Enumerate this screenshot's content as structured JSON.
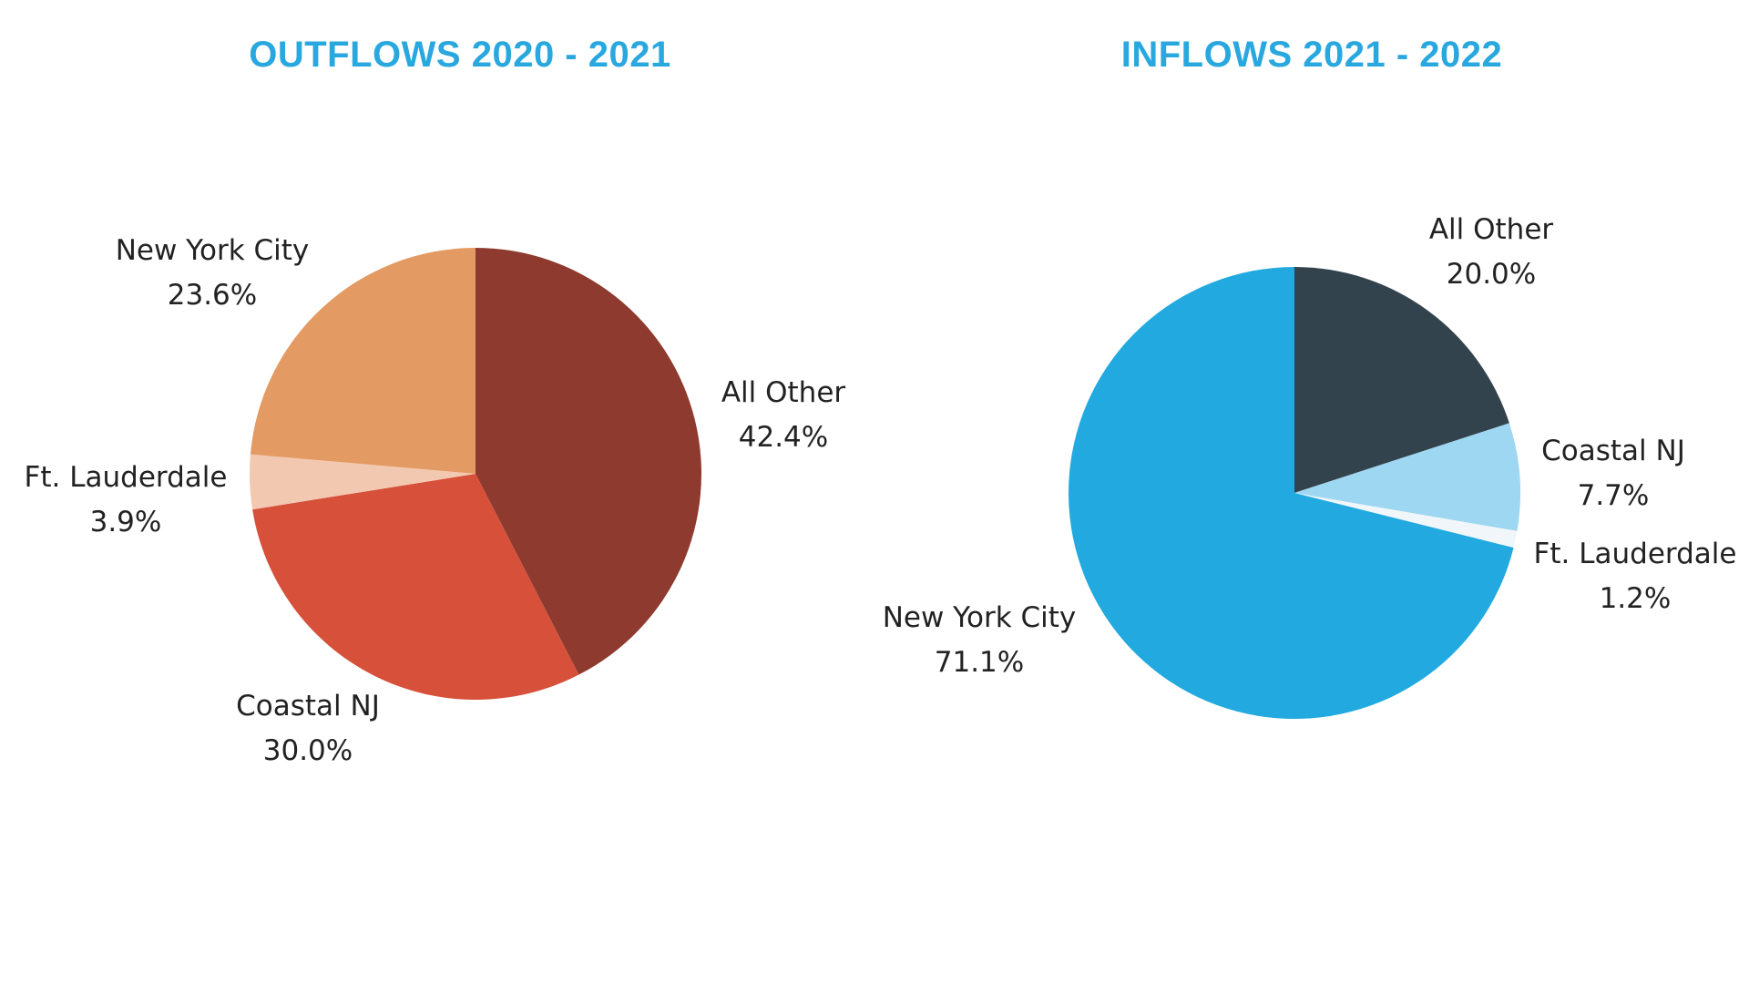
{
  "colors": {
    "title": "#29a8df"
  },
  "chart_data": [
    {
      "type": "pie",
      "title": "OUTFLOWS 2020 - 2021",
      "categories": [
        "All Other",
        "Coastal NJ",
        "Ft. Lauderdale",
        "New York City"
      ],
      "values": [
        42.4,
        30.0,
        3.9,
        23.6
      ],
      "value_labels": [
        "42.4%",
        "30.0%",
        "3.9%",
        "23.6%"
      ],
      "colors": [
        "#8e3a2e",
        "#d6503a",
        "#f3c8b0",
        "#e39a63"
      ],
      "start": "12 o'clock",
      "direction": "clockwise",
      "legend": "none"
    },
    {
      "type": "pie",
      "title": "INFLOWS 2021 - 2022",
      "categories": [
        "All Other",
        "Coastal NJ",
        "Ft. Lauderdale",
        "New York City"
      ],
      "values": [
        20.0,
        7.7,
        1.2,
        71.1
      ],
      "value_labels": [
        "20.0%",
        "7.7%",
        "1.2%",
        "71.1%"
      ],
      "colors": [
        "#33434d",
        "#9dd7f1",
        "#f1f6fa",
        "#22aae0"
      ],
      "start": "12 o'clock",
      "direction": "clockwise",
      "legend": "none"
    }
  ]
}
